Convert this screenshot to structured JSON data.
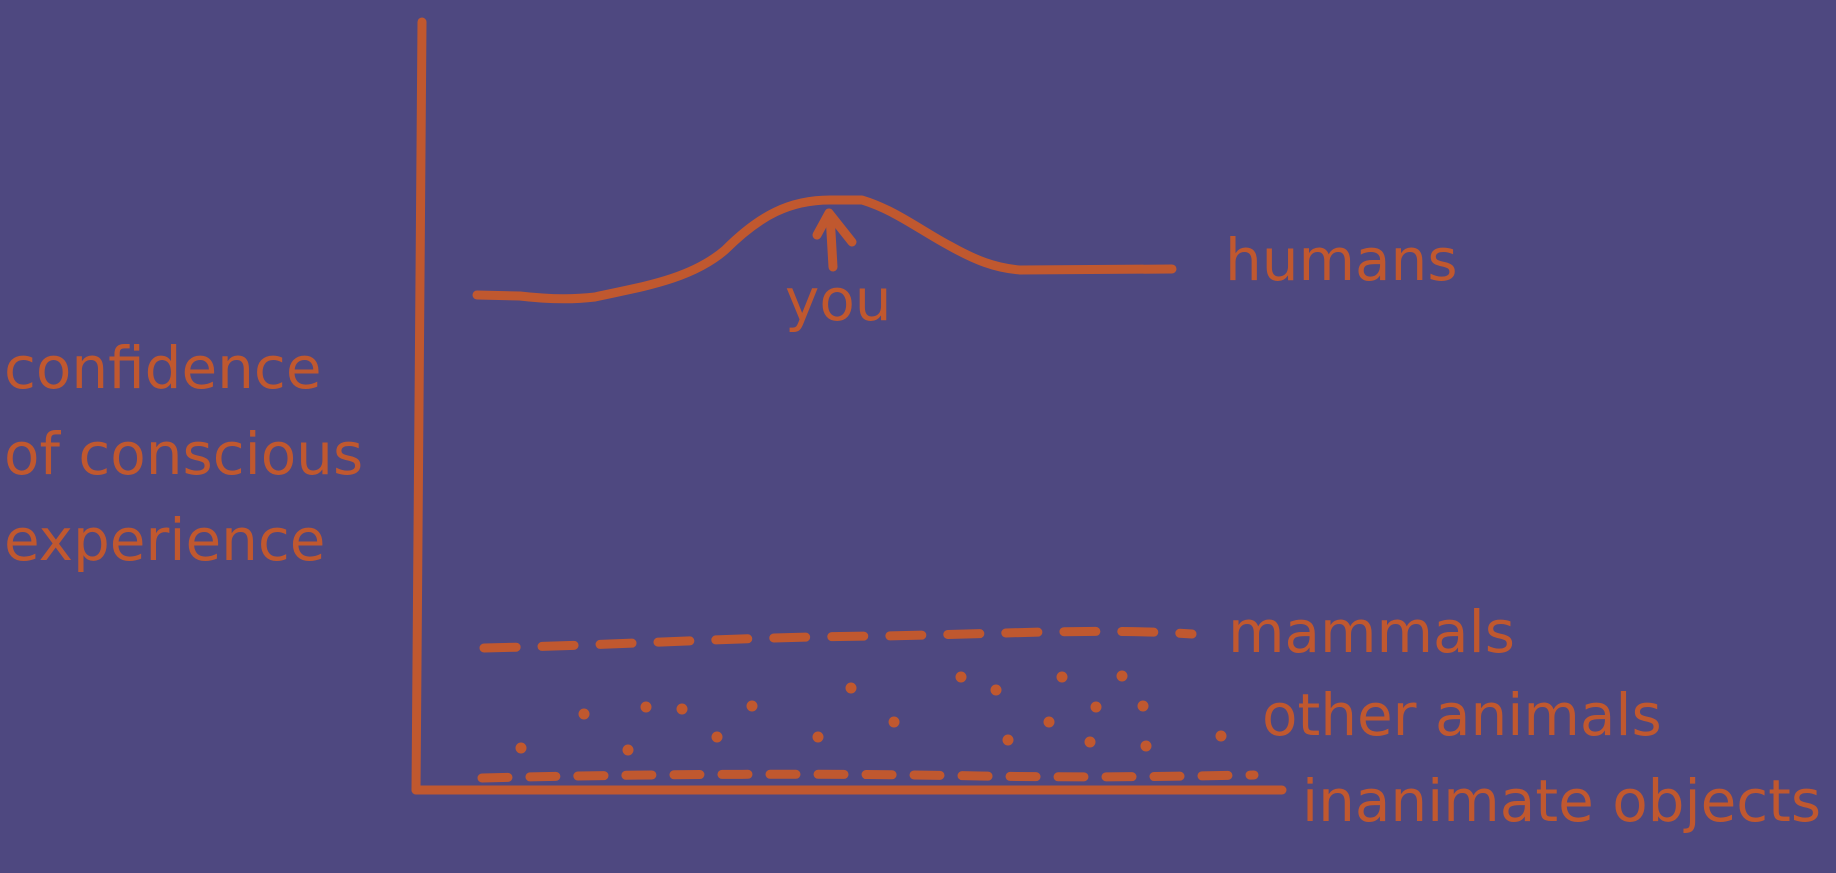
{
  "colors": {
    "background": "#4e4880",
    "ink": "#c0582f"
  },
  "y_axis_label": {
    "line1": "confidence",
    "line2": "of conscious",
    "line3": "experience"
  },
  "pointer_label": "you",
  "series": {
    "humans": "humans",
    "mammals": "mammals",
    "other_animals": "other animals",
    "inanimate_objects": "inanimate objects"
  }
}
